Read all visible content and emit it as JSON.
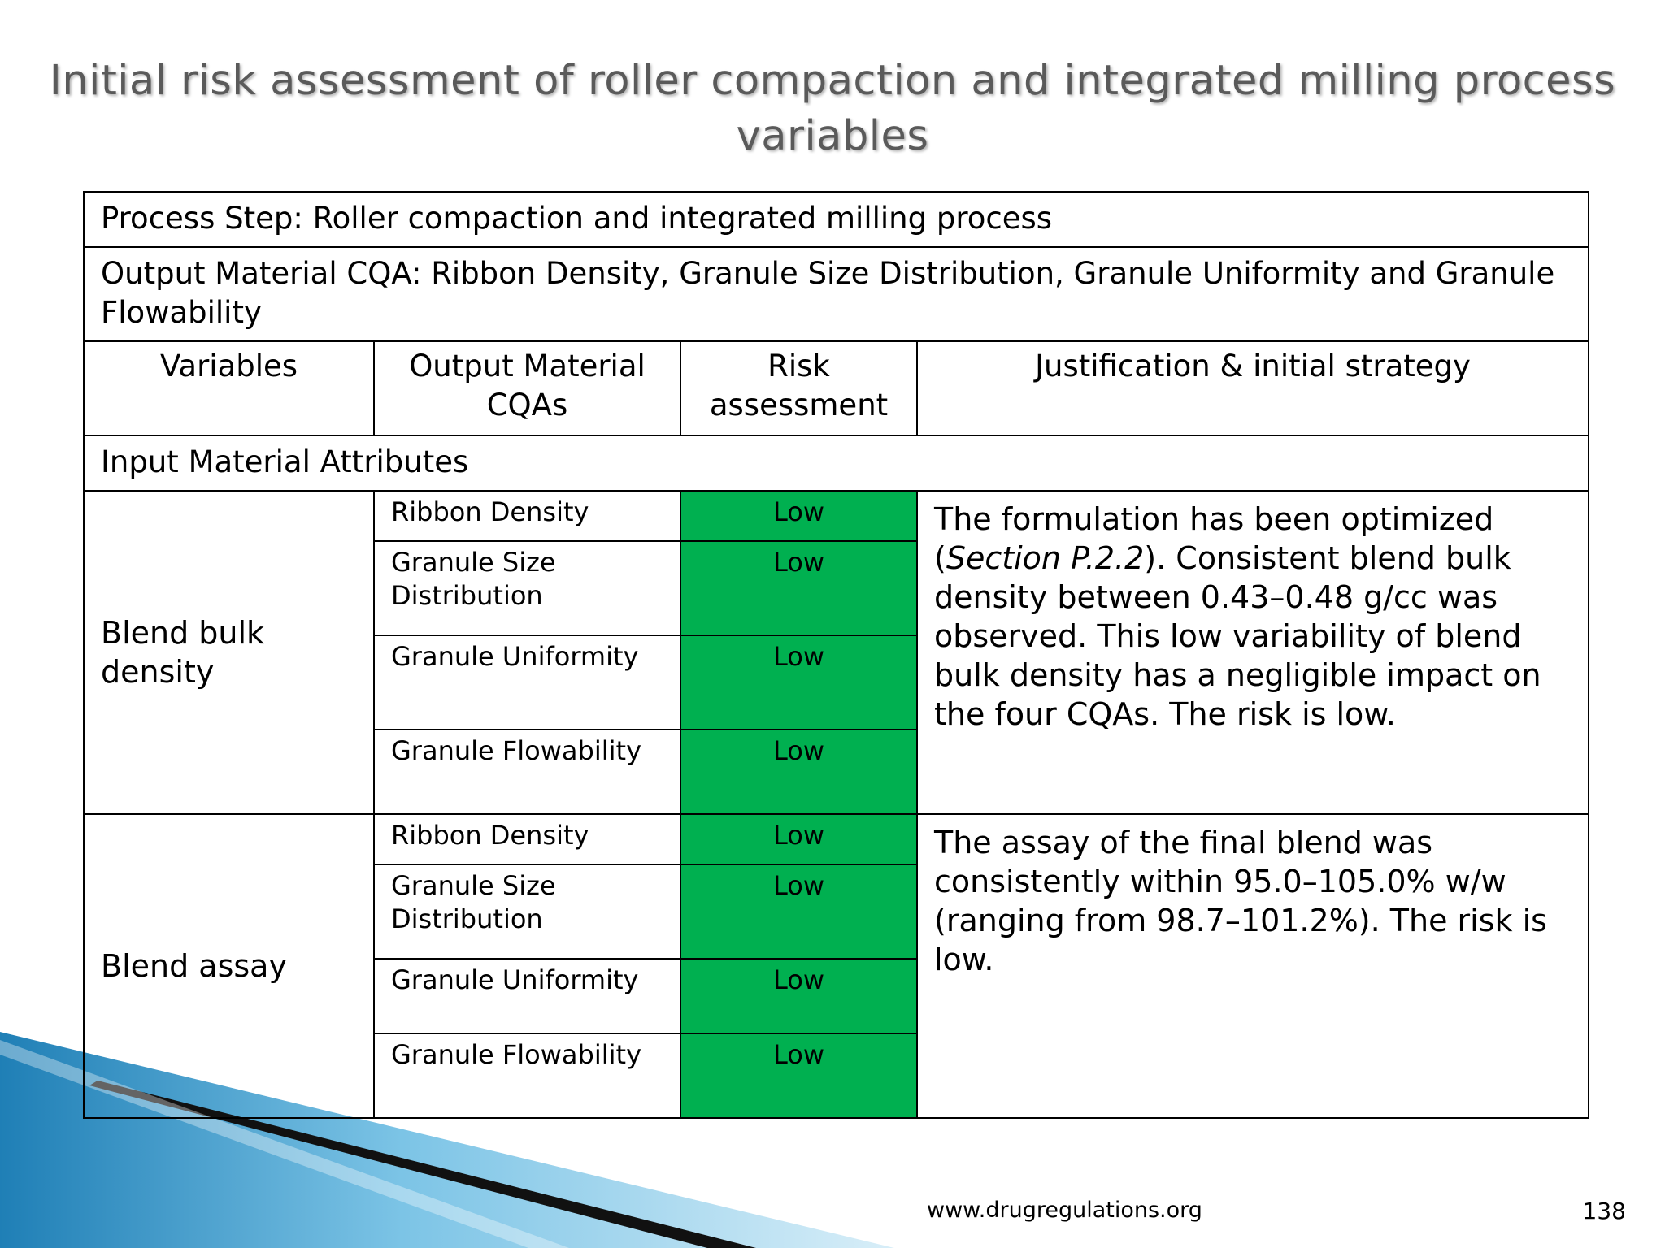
{
  "title": "Initial risk assessment of roller compaction and integrated milling process variables",
  "table": {
    "process_step": "Process Step: Roller compaction and integrated milling process",
    "output_cqa": "Output Material CQA: Ribbon Density, Granule Size Distribution, Granule Uniformity and Granule Flowability",
    "headers": {
      "variables": "Variables",
      "output_cqas": "Output Material CQAs",
      "risk": "Risk assessment",
      "justification": "Justification & initial strategy"
    },
    "section_label": "Input Material Attributes",
    "groups": [
      {
        "variable": "Blend bulk density",
        "rows": [
          {
            "cqa": "Ribbon Density",
            "risk": "Low"
          },
          {
            "cqa": "Granule Size Distribution",
            "risk": "Low"
          },
          {
            "cqa": "Granule Uniformity",
            "risk": "Low"
          },
          {
            "cqa": "Granule Flowability",
            "risk": "Low"
          }
        ],
        "justification_pre": "The formulation has been optimized (",
        "justification_ref": "Section P.2.2",
        "justification_post": "). Consistent blend bulk density between 0.43–0.48 g/cc was observed. This low variability of blend bulk density has a negligible impact on the four CQAs. The risk is low."
      },
      {
        "variable": "Blend assay",
        "rows": [
          {
            "cqa": "Ribbon Density",
            "risk": "Low"
          },
          {
            "cqa": "Granule Size Distribution",
            "risk": "Low"
          },
          {
            "cqa": "Granule Uniformity",
            "risk": "Low"
          },
          {
            "cqa": "Granule Flowability",
            "risk": "Low"
          }
        ],
        "justification": "The assay of the final blend was consistently within 95.0–105.0% w/w (ranging from 98.7–101.2%). The risk is low."
      }
    ]
  },
  "footer": {
    "url": "www.drugregulations.org",
    "page": "138"
  },
  "colors": {
    "risk_low": "#00b050",
    "title": "#5a5a5a",
    "swoosh_blue": "#3a9fd0"
  }
}
